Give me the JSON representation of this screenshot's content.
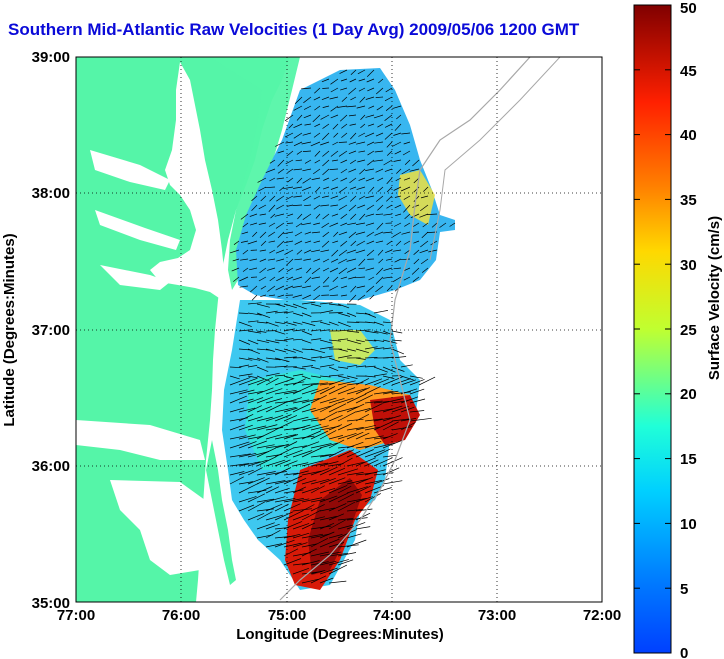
{
  "title": "Southern Mid-Atlantic Raw Velocities (1 Day Avg) 2009/05/06 1200 GMT",
  "map": {
    "xlabel": "Longitude (Degrees:Minutes)",
    "ylabel": "Latitude (Degrees:Minutes)",
    "x_ticks": [
      "77:00",
      "76:00",
      "75:00",
      "74:00",
      "73:00",
      "72:00"
    ],
    "y_ticks": [
      "35:00",
      "36:00",
      "37:00",
      "38:00",
      "39:00"
    ],
    "lon_range": [
      -77,
      -72
    ],
    "lat_range": [
      35,
      39
    ],
    "land_color": "#55f5a8",
    "water_color": "#ffffff"
  },
  "colorbar": {
    "label": "Surface Velocity (cm/s)",
    "ticks": [
      "0",
      "5",
      "10",
      "15",
      "20",
      "25",
      "30",
      "35",
      "40",
      "45",
      "50"
    ],
    "range": [
      0,
      50
    ],
    "colormap": "jet"
  }
}
